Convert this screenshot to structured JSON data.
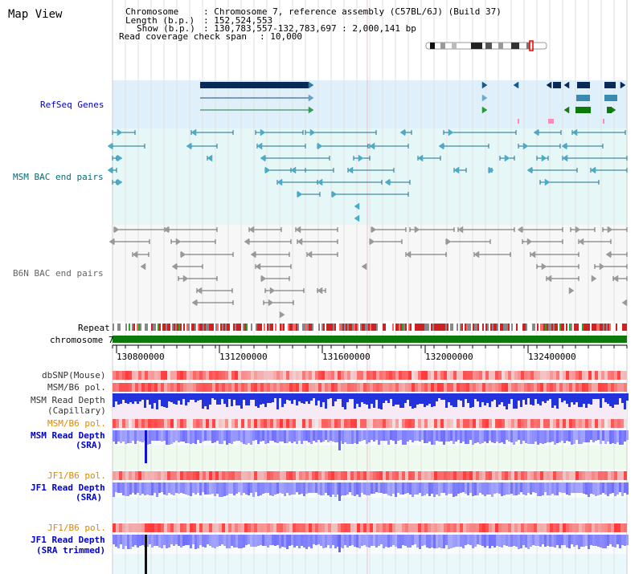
{
  "title": "Map View",
  "header": {
    "chromosome_label": "Chromosome",
    "chromosome_value": ": Chromosome 7, reference assembly (C57BL/6J) (Build 37)",
    "length_label": "Length (b.p.)",
    "length_value": ": 152,524,553",
    "show_label": "Show (b.p.)",
    "show_value": ": 130,783,557-132,783,697 : 2,000,141 bp",
    "coverage_label": "Read coverage check span",
    "coverage_value": ": 10,000"
  },
  "tracks": {
    "refseq": "RefSeq Genes",
    "msm_bac": "MSM BAC end pairs",
    "b6n_bac": "B6N BAC end pairs",
    "repeat": "Repeat",
    "chromosome": "chromosome 7",
    "dbsnp": "dbSNP(Mouse)",
    "msm_b6_pol1": "MSM/B6 pol.",
    "msm_read_depth_cap_1": "MSM Read Depth",
    "msm_read_depth_cap_2": "(Capillary)",
    "msm_b6_pol2": "MSM/B6 pol.",
    "msm_read_depth_sra_1": "MSM Read Depth",
    "msm_read_depth_sra_2": "(SRA)",
    "jf1_b6_pol1": "JF1/B6 pol.",
    "jf1_read_depth_sra_1": "JF1 Read Depth",
    "jf1_read_depth_sra_2": "(SRA)",
    "jf1_b6_pol2": "JF1/B6 pol.",
    "jf1_read_depth_trim_1": "JF1 Read Depth",
    "jf1_read_depth_trim_2": "(SRA trimmed)"
  },
  "axis_ticks": [
    "130800000",
    "131200000",
    "131600000",
    "132000000",
    "132400000"
  ],
  "colors": {
    "refseq_bg": "#dff0fb",
    "msm_bg": "#e6f7f7",
    "b6n_bg": "#f7f7f7",
    "gene_dark": "#0a2a5a",
    "msm_feature": "#1e6f8c",
    "b6n_feature": "#666666",
    "chrom_green": "#0b7a0b",
    "pol_red": "#ee3333",
    "depth_blue": "#2222ee",
    "label_blue": "#0000cc",
    "label_teal": "#006f7a",
    "label_orange": "#dd8800"
  }
}
